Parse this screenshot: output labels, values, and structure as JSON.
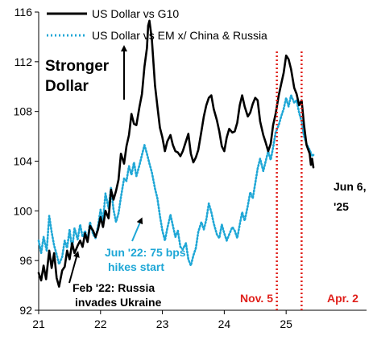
{
  "chart_data": {
    "type": "line",
    "title": "",
    "xlabel": "",
    "ylabel": "",
    "x_ticks": [
      "21",
      "22",
      "23",
      "24",
      "25"
    ],
    "x_tick_values": [
      2021,
      2022,
      2023,
      2024,
      2025
    ],
    "y_ticks": [
      92,
      96,
      100,
      104,
      108,
      112,
      116
    ],
    "xlim": [
      2021.0,
      2026.3
    ],
    "ylim": [
      92,
      116
    ],
    "grid": false,
    "legend_position": "top-left",
    "colors": {
      "g10": "#000000",
      "em": "#1fa7d6",
      "events": "#e0201b"
    },
    "series": [
      {
        "name": "US Dollar vs G10",
        "style": "solid",
        "points": [
          [
            2021.0,
            95.0
          ],
          [
            2021.04,
            94.4
          ],
          [
            2021.08,
            95.6
          ],
          [
            2021.12,
            94.5
          ],
          [
            2021.17,
            96.8
          ],
          [
            2021.21,
            95.4
          ],
          [
            2021.25,
            96.6
          ],
          [
            2021.29,
            94.6
          ],
          [
            2021.33,
            93.9
          ],
          [
            2021.38,
            95.2
          ],
          [
            2021.42,
            95.5
          ],
          [
            2021.46,
            96.8
          ],
          [
            2021.5,
            96.1
          ],
          [
            2021.54,
            97.4
          ],
          [
            2021.58,
            96.6
          ],
          [
            2021.63,
            97.2
          ],
          [
            2021.67,
            97.6
          ],
          [
            2021.71,
            97.1
          ],
          [
            2021.75,
            98.2
          ],
          [
            2021.79,
            97.5
          ],
          [
            2021.83,
            98.8
          ],
          [
            2021.88,
            98.4
          ],
          [
            2021.92,
            97.9
          ],
          [
            2021.96,
            98.5
          ],
          [
            2022.0,
            99.5
          ],
          [
            2022.04,
            98.7
          ],
          [
            2022.08,
            100.0
          ],
          [
            2022.13,
            99.4
          ],
          [
            2022.17,
            101.7
          ],
          [
            2022.21,
            100.9
          ],
          [
            2022.25,
            101.6
          ],
          [
            2022.29,
            102.5
          ],
          [
            2022.33,
            104.6
          ],
          [
            2022.38,
            103.8
          ],
          [
            2022.42,
            105.2
          ],
          [
            2022.46,
            106.1
          ],
          [
            2022.5,
            107.8
          ],
          [
            2022.54,
            107.0
          ],
          [
            2022.58,
            106.9
          ],
          [
            2022.63,
            108.4
          ],
          [
            2022.67,
            109.4
          ],
          [
            2022.71,
            111.6
          ],
          [
            2022.75,
            113.1
          ],
          [
            2022.77,
            114.9
          ],
          [
            2022.79,
            115.3
          ],
          [
            2022.83,
            113.8
          ],
          [
            2022.88,
            110.1
          ],
          [
            2022.92,
            108.4
          ],
          [
            2022.96,
            106.7
          ],
          [
            2023.0,
            105.9
          ],
          [
            2023.04,
            104.8
          ],
          [
            2023.08,
            105.6
          ],
          [
            2023.13,
            106.1
          ],
          [
            2023.17,
            105.3
          ],
          [
            2023.21,
            104.8
          ],
          [
            2023.25,
            104.7
          ],
          [
            2023.29,
            104.4
          ],
          [
            2023.33,
            104.8
          ],
          [
            2023.38,
            105.6
          ],
          [
            2023.42,
            106.2
          ],
          [
            2023.46,
            104.6
          ],
          [
            2023.5,
            103.9
          ],
          [
            2023.54,
            104.3
          ],
          [
            2023.58,
            104.9
          ],
          [
            2023.63,
            106.4
          ],
          [
            2023.67,
            107.6
          ],
          [
            2023.71,
            108.5
          ],
          [
            2023.75,
            109.1
          ],
          [
            2023.79,
            109.3
          ],
          [
            2023.83,
            108.2
          ],
          [
            2023.88,
            107.3
          ],
          [
            2023.92,
            106.4
          ],
          [
            2023.96,
            105.2
          ],
          [
            2024.0,
            104.8
          ],
          [
            2024.04,
            105.9
          ],
          [
            2024.08,
            106.6
          ],
          [
            2024.13,
            106.3
          ],
          [
            2024.17,
            106.4
          ],
          [
            2024.21,
            107.1
          ],
          [
            2024.25,
            108.5
          ],
          [
            2024.29,
            109.3
          ],
          [
            2024.33,
            108.4
          ],
          [
            2024.38,
            107.6
          ],
          [
            2024.42,
            107.9
          ],
          [
            2024.46,
            108.6
          ],
          [
            2024.5,
            109.1
          ],
          [
            2024.54,
            108.9
          ],
          [
            2024.58,
            107.2
          ],
          [
            2024.63,
            106.1
          ],
          [
            2024.67,
            105.5
          ],
          [
            2024.71,
            104.8
          ],
          [
            2024.75,
            105.4
          ],
          [
            2024.79,
            106.9
          ],
          [
            2024.83,
            107.8
          ],
          [
            2024.88,
            109.3
          ],
          [
            2024.92,
            110.2
          ],
          [
            2024.96,
            111.1
          ],
          [
            2025.0,
            112.5
          ],
          [
            2025.04,
            112.2
          ],
          [
            2025.08,
            111.4
          ],
          [
            2025.13,
            109.9
          ],
          [
            2025.17,
            109.4
          ],
          [
            2025.21,
            108.5
          ],
          [
            2025.25,
            108.9
          ],
          [
            2025.29,
            106.9
          ],
          [
            2025.33,
            105.3
          ],
          [
            2025.38,
            104.6
          ],
          [
            2025.4,
            103.7
          ],
          [
            2025.42,
            104.2
          ],
          [
            2025.44,
            103.5
          ]
        ]
      },
      {
        "name": "US Dollar vs EM x/ China & Russia",
        "style": "dotted",
        "points": [
          [
            2021.0,
            97.6
          ],
          [
            2021.04,
            96.6
          ],
          [
            2021.08,
            97.9
          ],
          [
            2021.13,
            96.8
          ],
          [
            2021.17,
            99.6
          ],
          [
            2021.21,
            98.3
          ],
          [
            2021.25,
            97.2
          ],
          [
            2021.29,
            96.5
          ],
          [
            2021.33,
            95.7
          ],
          [
            2021.38,
            96.3
          ],
          [
            2021.42,
            97.6
          ],
          [
            2021.46,
            97.0
          ],
          [
            2021.5,
            98.5
          ],
          [
            2021.54,
            96.9
          ],
          [
            2021.58,
            98.6
          ],
          [
            2021.63,
            97.7
          ],
          [
            2021.67,
            98.9
          ],
          [
            2021.71,
            97.9
          ],
          [
            2021.75,
            98.4
          ],
          [
            2021.79,
            97.6
          ],
          [
            2021.83,
            99.1
          ],
          [
            2021.88,
            98.1
          ],
          [
            2021.92,
            97.8
          ],
          [
            2021.96,
            98.8
          ],
          [
            2022.0,
            100.1
          ],
          [
            2022.04,
            99.2
          ],
          [
            2022.08,
            101.4
          ],
          [
            2022.13,
            100.2
          ],
          [
            2022.17,
            101.9
          ],
          [
            2022.21,
            100.1
          ],
          [
            2022.25,
            99.1
          ],
          [
            2022.29,
            99.8
          ],
          [
            2022.33,
            101.1
          ],
          [
            2022.38,
            102.6
          ],
          [
            2022.42,
            102.4
          ],
          [
            2022.46,
            103.6
          ],
          [
            2022.5,
            102.9
          ],
          [
            2022.54,
            103.9
          ],
          [
            2022.58,
            102.8
          ],
          [
            2022.63,
            103.7
          ],
          [
            2022.67,
            104.5
          ],
          [
            2022.71,
            105.3
          ],
          [
            2022.75,
            104.6
          ],
          [
            2022.79,
            103.8
          ],
          [
            2022.83,
            103.1
          ],
          [
            2022.88,
            101.8
          ],
          [
            2022.92,
            101.0
          ],
          [
            2022.96,
            99.6
          ],
          [
            2023.0,
            98.4
          ],
          [
            2023.04,
            97.6
          ],
          [
            2023.08,
            98.6
          ],
          [
            2023.13,
            99.7
          ],
          [
            2023.17,
            98.8
          ],
          [
            2023.21,
            97.9
          ],
          [
            2023.25,
            98.4
          ],
          [
            2023.29,
            97.1
          ],
          [
            2023.33,
            96.9
          ],
          [
            2023.38,
            97.4
          ],
          [
            2023.42,
            96.1
          ],
          [
            2023.46,
            95.6
          ],
          [
            2023.5,
            96.4
          ],
          [
            2023.54,
            97.0
          ],
          [
            2023.58,
            98.3
          ],
          [
            2023.63,
            99.1
          ],
          [
            2023.67,
            98.5
          ],
          [
            2023.71,
            99.3
          ],
          [
            2023.75,
            100.6
          ],
          [
            2023.79,
            99.9
          ],
          [
            2023.83,
            99.0
          ],
          [
            2023.88,
            98.1
          ],
          [
            2023.92,
            97.8
          ],
          [
            2023.96,
            98.9
          ],
          [
            2024.0,
            98.2
          ],
          [
            2024.04,
            97.6
          ],
          [
            2024.08,
            98.1
          ],
          [
            2024.13,
            98.7
          ],
          [
            2024.17,
            98.4
          ],
          [
            2024.21,
            97.8
          ],
          [
            2024.25,
            98.9
          ],
          [
            2024.29,
            99.9
          ],
          [
            2024.33,
            99.2
          ],
          [
            2024.38,
            100.4
          ],
          [
            2024.42,
            101.5
          ],
          [
            2024.46,
            101.0
          ],
          [
            2024.5,
            102.2
          ],
          [
            2024.54,
            103.4
          ],
          [
            2024.58,
            104.2
          ],
          [
            2024.63,
            103.2
          ],
          [
            2024.67,
            104.0
          ],
          [
            2024.71,
            104.8
          ],
          [
            2024.75,
            104.1
          ],
          [
            2024.79,
            105.1
          ],
          [
            2024.83,
            106.3
          ],
          [
            2024.88,
            106.9
          ],
          [
            2024.92,
            107.6
          ],
          [
            2024.96,
            108.2
          ],
          [
            2025.0,
            109.1
          ],
          [
            2025.04,
            108.4
          ],
          [
            2025.08,
            109.3
          ],
          [
            2025.13,
            108.7
          ],
          [
            2025.17,
            108.9
          ],
          [
            2025.21,
            107.9
          ],
          [
            2025.25,
            107.2
          ],
          [
            2025.29,
            106.0
          ],
          [
            2025.33,
            105.4
          ],
          [
            2025.38,
            104.9
          ],
          [
            2025.42,
            104.4
          ],
          [
            2025.44,
            104.5
          ]
        ]
      }
    ],
    "event_lines": [
      {
        "x": 2024.85,
        "label": "Nov. 5"
      },
      {
        "x": 2025.25,
        "label": "Apr. 2"
      }
    ],
    "annotations": {
      "stronger": [
        "Stronger",
        "Dollar"
      ],
      "feb22": [
        "Feb '22: Russia",
        "invades Ukraine"
      ],
      "jun22": [
        "Jun '22: 75 bps",
        "hikes start"
      ],
      "end_date": [
        "Jun 6,",
        "'25"
      ]
    }
  }
}
